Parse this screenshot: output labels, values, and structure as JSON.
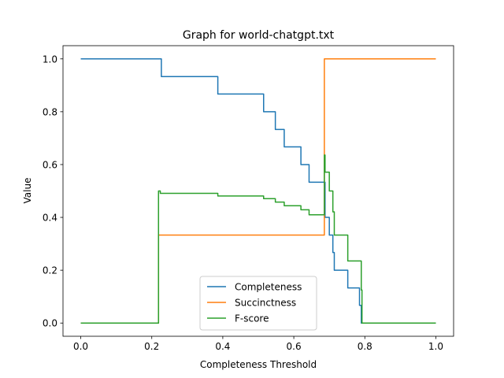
{
  "chart_data": {
    "type": "line",
    "title": "Graph for world-chatgpt.txt",
    "xlabel": "Completeness Threshold",
    "ylabel": "Value",
    "xlim": [
      -0.05,
      1.05
    ],
    "ylim": [
      -0.05,
      1.05
    ],
    "xticks": [
      0.0,
      0.2,
      0.4,
      0.6,
      0.8,
      1.0
    ],
    "yticks": [
      0.0,
      0.2,
      0.4,
      0.6,
      0.8,
      1.0
    ],
    "xtick_labels": [
      "0.0",
      "0.2",
      "0.4",
      "0.6",
      "0.8",
      "1.0"
    ],
    "ytick_labels": [
      "0.0",
      "0.2",
      "0.4",
      "0.6",
      "0.8",
      "1.0"
    ],
    "grid": false,
    "legend_position": "lower center",
    "series": [
      {
        "name": "Completeness",
        "color": "#1f77b4",
        "x": [
          0.0,
          0.227,
          0.227,
          0.386,
          0.386,
          0.515,
          0.515,
          0.548,
          0.548,
          0.573,
          0.573,
          0.62,
          0.62,
          0.643,
          0.643,
          0.688,
          0.688,
          0.7,
          0.7,
          0.71,
          0.71,
          0.714,
          0.714,
          0.72,
          0.72,
          0.752,
          0.752,
          0.785,
          0.785,
          0.79,
          0.79,
          0.792,
          0.792,
          1.0
        ],
        "y": [
          1.0,
          1.0,
          0.933,
          0.933,
          0.867,
          0.867,
          0.8,
          0.8,
          0.733,
          0.733,
          0.667,
          0.667,
          0.6,
          0.6,
          0.533,
          0.533,
          0.4,
          0.4,
          0.333,
          0.333,
          0.267,
          0.267,
          0.2,
          0.2,
          0.2,
          0.2,
          0.133,
          0.133,
          0.067,
          0.067,
          0.0,
          0.0,
          0.0,
          0.0
        ]
      },
      {
        "name": "Succinctness",
        "color": "#ff7f0e",
        "x": [
          0.0,
          0.219,
          0.219,
          0.686,
          0.686,
          1.0
        ],
        "y": [
          0.0,
          0.0,
          0.333,
          0.333,
          1.0,
          1.0
        ]
      },
      {
        "name": "F-score",
        "color": "#2ca02c",
        "x": [
          0.0,
          0.219,
          0.219,
          0.224,
          0.224,
          0.386,
          0.386,
          0.515,
          0.515,
          0.548,
          0.548,
          0.573,
          0.573,
          0.62,
          0.62,
          0.643,
          0.643,
          0.686,
          0.686,
          0.688,
          0.688,
          0.7,
          0.7,
          0.71,
          0.71,
          0.714,
          0.714,
          0.752,
          0.752,
          0.79,
          0.79,
          0.792,
          0.792,
          1.0
        ],
        "y": [
          0.0,
          0.0,
          0.5,
          0.5,
          0.491,
          0.491,
          0.481,
          0.481,
          0.471,
          0.471,
          0.458,
          0.458,
          0.444,
          0.444,
          0.429,
          0.429,
          0.41,
          0.41,
          0.636,
          0.636,
          0.571,
          0.571,
          0.5,
          0.5,
          0.421,
          0.421,
          0.333,
          0.333,
          0.235,
          0.235,
          0.125,
          0.125,
          0.0,
          0.0
        ]
      }
    ]
  }
}
